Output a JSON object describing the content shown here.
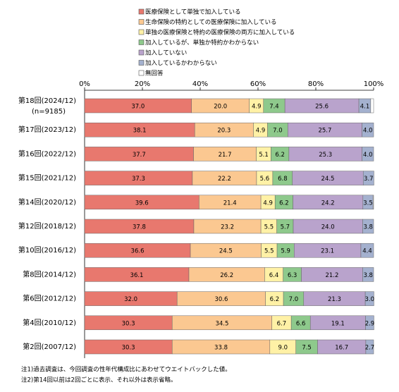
{
  "chart_data": {
    "type": "stacked-bar-horizontal",
    "categories": [
      "第18回(2024/12)",
      "第17回(2023/12)",
      "第16回(2022/12)",
      "第15回(2021/12)",
      "第14回(2020/12)",
      "第12回(2018/12)",
      "第10回(2016/12)",
      "第8回(2014/12)",
      "第6回(2012/12)",
      "第4回(2010/12)",
      "第2回(2007/12)"
    ],
    "first_category_note": "(n=9185)",
    "xlim": [
      0,
      100
    ],
    "xticks": [
      {
        "value": 0,
        "label": "0%"
      },
      {
        "value": 20,
        "label": "20%"
      },
      {
        "value": 40,
        "label": "40%"
      },
      {
        "value": 60,
        "label": "60%"
      },
      {
        "value": 80,
        "label": "80%"
      },
      {
        "value": 100,
        "label": "100%"
      }
    ],
    "series": [
      {
        "name": "医療保険として単独で加入している",
        "color": "#e8786e",
        "values": [
          37.0,
          38.1,
          37.7,
          37.3,
          39.6,
          37.8,
          36.6,
          36.1,
          32.0,
          30.3,
          30.3
        ],
        "value_labels": [
          "37.0",
          "38.1",
          "37.7",
          "37.3",
          "39.6",
          "37.8",
          "36.6",
          "36.1",
          "32.0",
          "30.3",
          "30.3"
        ]
      },
      {
        "name": "生命保険の特約としての医療保険に加入している",
        "color": "#fbc891",
        "values": [
          20.0,
          20.3,
          21.7,
          22.2,
          21.4,
          23.2,
          24.5,
          26.2,
          30.6,
          34.5,
          33.8
        ],
        "value_labels": [
          "20.0",
          "20.3",
          "21.7",
          "22.2",
          "21.4",
          "23.2",
          "24.5",
          "26.2",
          "30.6",
          "34.5",
          "33.8"
        ]
      },
      {
        "name": "単独の医療保険と特約の医療保険の両方に加入している",
        "color": "#fff1a6",
        "values": [
          4.9,
          4.9,
          5.1,
          5.6,
          4.9,
          5.5,
          5.5,
          6.4,
          6.2,
          6.7,
          9.0
        ],
        "value_labels": [
          "4.9",
          "4.9",
          "5.1",
          "5.6",
          "4.9",
          "5.5",
          "5.5",
          "6.4",
          "6.2",
          "6.7",
          "9.0"
        ]
      },
      {
        "name": "加入しているが、単独か特約かわからない",
        "color": "#8ec98c",
        "values": [
          7.4,
          7.0,
          6.2,
          6.8,
          6.2,
          5.7,
          5.9,
          6.3,
          7.0,
          6.6,
          7.5
        ],
        "value_labels": [
          "7.4",
          "7.0",
          "6.2",
          "6.8",
          "6.2",
          "5.7",
          "5.9",
          "6.3",
          "7.0",
          "6.6",
          "7.5"
        ]
      },
      {
        "name": "加入していない",
        "color": "#b9a3cc",
        "values": [
          25.6,
          25.7,
          25.3,
          24.5,
          24.2,
          24.0,
          23.1,
          21.2,
          21.3,
          19.1,
          16.7
        ],
        "value_labels": [
          "25.6",
          "25.7",
          "25.3",
          "24.5",
          "24.2",
          "24.0",
          "23.1",
          "21.2",
          "21.3",
          "19.1",
          "16.7"
        ]
      },
      {
        "name": "加入しているかわからない",
        "color": "#a4b1cf",
        "values": [
          4.1,
          4.0,
          4.0,
          3.7,
          3.5,
          3.8,
          4.4,
          3.8,
          3.0,
          2.9,
          2.7
        ],
        "value_labels": [
          "4.1",
          "4.0",
          "4.0",
          "3.7",
          "3.5",
          "3.8",
          "4.4",
          "3.8",
          "3.0",
          "2.9",
          "2.7"
        ]
      },
      {
        "name": "無回答",
        "color": "#ffffff",
        "values": [
          1.0,
          0,
          0,
          0,
          0.2,
          0,
          0,
          0,
          0,
          0,
          0
        ]
      }
    ],
    "notes": [
      "注1)過去調査は、今回調査の性年代構成比にあわせてウエイトバックした値。",
      "注2)第14回以前は2回ごとに表示、それ以外は表示省略。"
    ]
  }
}
